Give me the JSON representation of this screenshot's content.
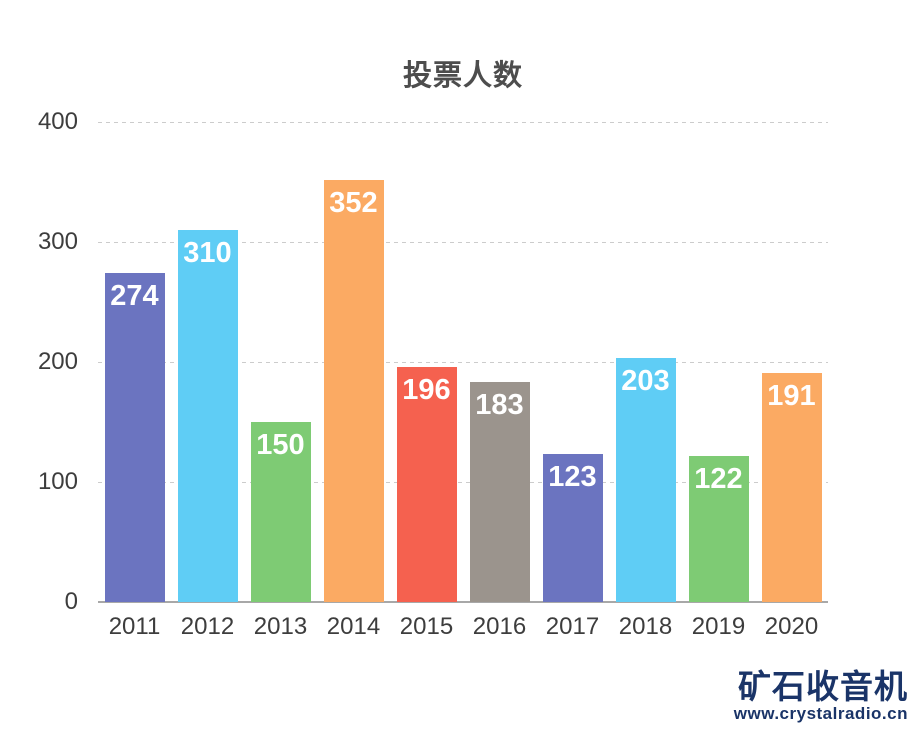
{
  "chart_data": {
    "type": "bar",
    "title": "投票人数",
    "categories": [
      "2011",
      "2012",
      "2013",
      "2014",
      "2015",
      "2016",
      "2017",
      "2018",
      "2019",
      "2020"
    ],
    "values": [
      274,
      310,
      150,
      352,
      196,
      183,
      123,
      203,
      122,
      191
    ],
    "bar_colors": [
      "#6b74c0",
      "#5fcdf5",
      "#7ecb74",
      "#fbaa63",
      "#f5614f",
      "#9b948d",
      "#6b74c0",
      "#5fcdf5",
      "#7ecb74",
      "#fbaa63"
    ],
    "y_ticks": [
      0,
      100,
      200,
      300,
      400
    ],
    "ylim": [
      0,
      400
    ],
    "xlabel": "",
    "ylabel": "",
    "grid": "horizontal-dashed",
    "legend": "none",
    "value_labels": "inside-top-white-bold"
  },
  "watermark": {
    "title": "矿石收音机",
    "url": "www.crystalradio.cn",
    "color": "#1a3468"
  },
  "colors": {
    "background": "#ffffff",
    "title_text": "#4d4d4d",
    "axis_text": "#3d3d3d",
    "gridline": "#cccccc",
    "axis_line": "#a8a8a8",
    "value_label_text": "#ffffff"
  }
}
